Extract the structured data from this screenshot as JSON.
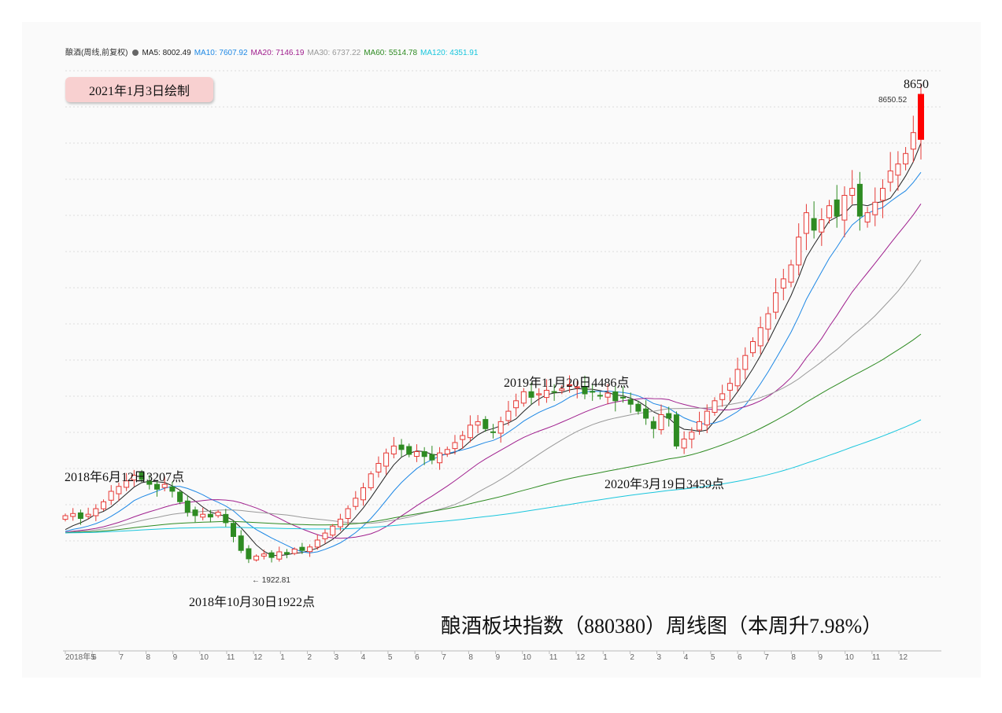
{
  "legend": {
    "title": "酿酒(周线,前复权)",
    "ma5": "MA5: 8002.49",
    "ma10": "MA10: 7607.92",
    "ma20": "MA20: 7146.19",
    "ma30": "MA30: 6737.22",
    "ma60": "MA60: 5514.78",
    "ma120": "MA120: 4351.91",
    "colors": {
      "ma5": "#222222",
      "ma10": "#1e88e5",
      "ma20": "#a0208e",
      "ma30": "#999999",
      "ma60": "#2e8b22",
      "ma120": "#19c6dd"
    }
  },
  "badge": "2021年1月3日绘制",
  "big_title": "酿酒板块指数（880380）周线图（本周升7.98%）",
  "annotations": {
    "a1": "2018年6月12日3207点",
    "a2": "2018年10月30日1922点",
    "a3": "2019年11月20日4486点",
    "a4": "2020年3月19日3459点",
    "a5": "8650"
  },
  "low_label": "1922.81",
  "high_label": "8650.52",
  "chart_data": {
    "type": "candlestick",
    "title": "酿酒板块指数（880380）周线图（本周升7.98%）",
    "x_tick_labels": [
      "2018年5",
      "6",
      "7",
      "8",
      "9",
      "10",
      "11",
      "12",
      "1",
      "2",
      "3",
      "4",
      "5",
      "6",
      "7",
      "8",
      "9",
      "10",
      "11",
      "12",
      "1",
      "2",
      "3",
      "4",
      "5",
      "6",
      "7",
      "8",
      "9",
      "10",
      "11",
      "12"
    ],
    "grid": true,
    "colors": {
      "up": "#e53935",
      "down": "#2e8b22"
    },
    "key_points": [
      {
        "date": "2018-06-12",
        "value": 3207
      },
      {
        "date": "2018-10-30",
        "value": 1922.81
      },
      {
        "date": "2019-11-20",
        "value": 4486
      },
      {
        "date": "2020-03-19",
        "value": 3459
      },
      {
        "date": "2021-01",
        "value": 8650.52
      }
    ],
    "closes": [
      2600,
      2630,
      2560,
      2620,
      2700,
      2800,
      2950,
      3020,
      3100,
      3180,
      3120,
      3050,
      2980,
      3050,
      2950,
      2800,
      2650,
      2600,
      2620,
      2580,
      2650,
      2500,
      2300,
      2100,
      1980,
      2020,
      2050,
      2000,
      2080,
      2050,
      2120,
      2100,
      2150,
      2250,
      2350,
      2450,
      2550,
      2700,
      2850,
      3000,
      3200,
      3350,
      3500,
      3600,
      3550,
      3480,
      3520,
      3450,
      3400,
      3500,
      3550,
      3650,
      3750,
      3900,
      3950,
      3850,
      3800,
      3950,
      4100,
      4250,
      4380,
      4300,
      4350,
      4400,
      4380,
      4420,
      4480,
      4450,
      4350,
      4380,
      4320,
      4360,
      4250,
      4300,
      4200,
      4100,
      4000,
      3850,
      4050,
      4000,
      3600,
      3700,
      3800,
      3950,
      4100,
      4250,
      4350,
      4500,
      4700,
      4900,
      5100,
      5300,
      5500,
      5800,
      6000,
      6200,
      6600,
      6950,
      6700,
      6850,
      7050,
      6900,
      7200,
      7300,
      6900,
      6950,
      7100,
      7300,
      7550,
      7650,
      7800,
      8100,
      8650
    ]
  }
}
